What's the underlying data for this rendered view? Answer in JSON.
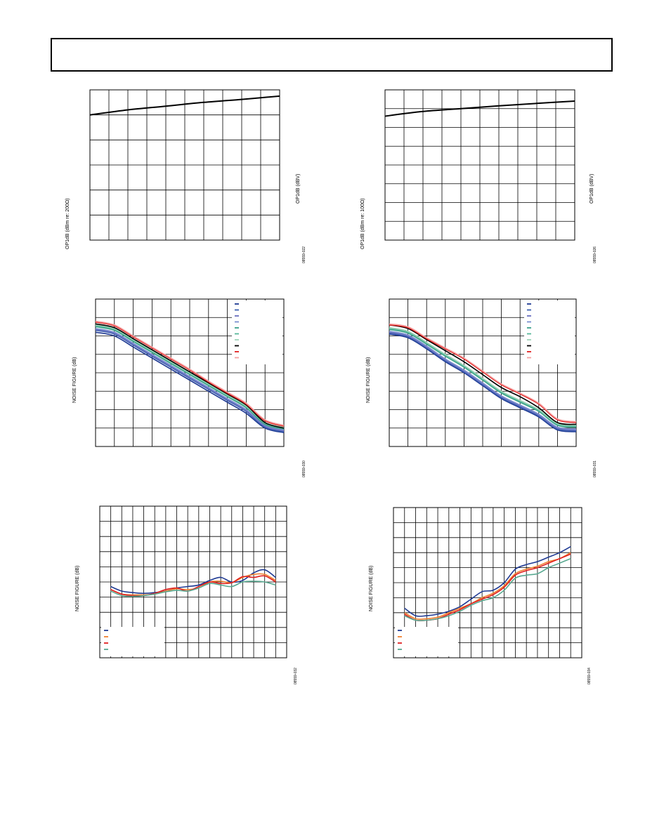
{
  "header": {
    "title": ""
  },
  "charts": [
    {
      "ylabel": "OP1dB (dBm re: 200Ω)",
      "ylabel_right": "OP1dB (dBV)",
      "figure_id": "08559-022"
    },
    {
      "ylabel": "OP1dB (dBm re: 100Ω)",
      "ylabel_right": "OP1dB (dBV)",
      "figure_id": "08559-026"
    },
    {
      "ylabel": "NOISE FIGURE (dB)",
      "figure_id": "08559-030"
    },
    {
      "ylabel": "NOISE FIGURE (dB)",
      "figure_id": "08559-031"
    },
    {
      "ylabel": "NOISE FIGURE (dB)",
      "figure_id": "08559-032"
    },
    {
      "ylabel": "NOISE FIGURE (dB)",
      "figure_id": "08559-034"
    }
  ],
  "chart_data": [
    {
      "type": "line",
      "grid": true,
      "grid_cols": 10,
      "grid_rows": 6,
      "xlim": [
        0,
        10
      ],
      "ylim": [
        0,
        6
      ],
      "series": [
        {
          "color": "#000000",
          "x": [
            0,
            2,
            4,
            6,
            8,
            10
          ],
          "y": [
            5.0,
            5.2,
            5.35,
            5.5,
            5.62,
            5.75
          ]
        }
      ]
    },
    {
      "type": "line",
      "grid": true,
      "grid_cols": 10,
      "grid_rows": 8,
      "xlim": [
        0,
        10
      ],
      "ylim": [
        0,
        8
      ],
      "series": [
        {
          "color": "#000000",
          "x": [
            0,
            2,
            4,
            6,
            8,
            10
          ],
          "y": [
            6.6,
            6.85,
            7.0,
            7.15,
            7.28,
            7.4
          ]
        }
      ]
    },
    {
      "type": "line",
      "grid": true,
      "grid_cols": 10,
      "grid_rows": 8,
      "xlim": [
        0,
        10
      ],
      "ylim": [
        0,
        8
      ],
      "legend": "top-right",
      "series": [
        {
          "color": "#1f3a93",
          "x": [
            0,
            1,
            2,
            3,
            4,
            5,
            6,
            7,
            8,
            9,
            10
          ],
          "y": [
            6.2,
            6.0,
            5.4,
            4.8,
            4.2,
            3.6,
            3.0,
            2.4,
            1.8,
            1.0,
            0.75
          ]
        },
        {
          "color": "#3b5fb0",
          "x": [
            0,
            1,
            2,
            3,
            4,
            5,
            6,
            7,
            8,
            9,
            10
          ],
          "y": [
            6.3,
            6.1,
            5.5,
            4.9,
            4.3,
            3.7,
            3.1,
            2.5,
            1.9,
            1.05,
            0.8
          ]
        },
        {
          "color": "#6a6fc0",
          "x": [
            0,
            1,
            2,
            3,
            4,
            5,
            6,
            7,
            8,
            9,
            10
          ],
          "y": [
            6.35,
            6.15,
            5.55,
            4.95,
            4.35,
            3.75,
            3.15,
            2.55,
            1.95,
            1.1,
            0.85
          ]
        },
        {
          "color": "#7a8fd0",
          "x": [
            0,
            1,
            2,
            3,
            4,
            5,
            6,
            7,
            8,
            9,
            10
          ],
          "y": [
            6.4,
            6.2,
            5.6,
            5.0,
            4.4,
            3.8,
            3.2,
            2.6,
            2.0,
            1.15,
            0.9
          ]
        },
        {
          "color": "#3aa08a",
          "x": [
            0,
            1,
            2,
            3,
            4,
            5,
            6,
            7,
            8,
            9,
            10
          ],
          "y": [
            6.5,
            6.3,
            5.7,
            5.1,
            4.5,
            3.9,
            3.3,
            2.7,
            2.1,
            1.2,
            0.95
          ]
        },
        {
          "color": "#58b89a",
          "x": [
            0,
            1,
            2,
            3,
            4,
            5,
            6,
            7,
            8,
            9,
            10
          ],
          "y": [
            6.55,
            6.35,
            5.75,
            5.15,
            4.55,
            3.95,
            3.35,
            2.75,
            2.15,
            1.25,
            1.0
          ]
        },
        {
          "color": "#9ed4b8",
          "x": [
            0,
            1,
            2,
            3,
            4,
            5,
            6,
            7,
            8,
            9,
            10
          ],
          "y": [
            6.6,
            6.4,
            5.8,
            5.2,
            4.6,
            4.0,
            3.4,
            2.8,
            2.2,
            1.3,
            1.05
          ]
        },
        {
          "color": "#000000",
          "x": [
            0,
            1,
            2,
            3,
            4,
            5,
            6,
            7,
            8,
            9,
            10
          ],
          "y": [
            6.65,
            6.45,
            5.85,
            5.25,
            4.65,
            4.05,
            3.45,
            2.85,
            2.25,
            1.3,
            1.0
          ]
        },
        {
          "color": "#e02020",
          "x": [
            0,
            1,
            2,
            3,
            4,
            5,
            6,
            7,
            8,
            9,
            10
          ],
          "y": [
            6.75,
            6.55,
            5.95,
            5.35,
            4.75,
            4.15,
            3.5,
            2.9,
            2.3,
            1.4,
            1.1
          ]
        },
        {
          "color": "#f4a0a0",
          "x": [
            0,
            1,
            2,
            3,
            4,
            5,
            6,
            7,
            8,
            9,
            10
          ],
          "y": [
            6.8,
            6.6,
            6.0,
            5.4,
            4.8,
            4.2,
            3.55,
            2.95,
            2.35,
            1.45,
            1.15
          ]
        }
      ]
    },
    {
      "type": "line",
      "grid": true,
      "grid_cols": 10,
      "grid_rows": 8,
      "xlim": [
        0,
        10
      ],
      "ylim": [
        0,
        8
      ],
      "legend": "top-right",
      "series": [
        {
          "color": "#1f3a93",
          "x": [
            0,
            1,
            2,
            3,
            4,
            5,
            6,
            7,
            8,
            9,
            10
          ],
          "y": [
            6.1,
            5.9,
            5.3,
            4.6,
            4.0,
            3.3,
            2.6,
            2.1,
            1.6,
            0.9,
            0.8
          ]
        },
        {
          "color": "#3b5fb0",
          "x": [
            0,
            1,
            2,
            3,
            4,
            5,
            6,
            7,
            8,
            9,
            10
          ],
          "y": [
            6.15,
            5.95,
            5.35,
            4.65,
            4.05,
            3.35,
            2.65,
            2.15,
            1.65,
            0.95,
            0.85
          ]
        },
        {
          "color": "#6a6fc0",
          "x": [
            0,
            1,
            2,
            3,
            4,
            5,
            6,
            7,
            8,
            9,
            10
          ],
          "y": [
            6.2,
            6.0,
            5.4,
            4.7,
            4.1,
            3.4,
            2.7,
            2.2,
            1.7,
            1.0,
            0.9
          ]
        },
        {
          "color": "#7a8fd0",
          "x": [
            0,
            1,
            2,
            3,
            4,
            5,
            6,
            7,
            8,
            9,
            10
          ],
          "y": [
            6.25,
            6.05,
            5.45,
            4.75,
            4.15,
            3.45,
            2.75,
            2.25,
            1.75,
            1.05,
            0.95
          ]
        },
        {
          "color": "#3aa08a",
          "x": [
            0,
            1,
            2,
            3,
            4,
            5,
            6,
            7,
            8,
            9,
            10
          ],
          "y": [
            6.35,
            6.15,
            5.55,
            4.9,
            4.3,
            3.6,
            2.9,
            2.4,
            1.9,
            1.15,
            1.05
          ]
        },
        {
          "color": "#58b89a",
          "x": [
            0,
            1,
            2,
            3,
            4,
            5,
            6,
            7,
            8,
            9,
            10
          ],
          "y": [
            6.4,
            6.2,
            5.6,
            4.95,
            4.35,
            3.65,
            2.95,
            2.45,
            1.95,
            1.2,
            1.1
          ]
        },
        {
          "color": "#9ed4b8",
          "x": [
            0,
            1,
            2,
            3,
            4,
            5,
            6,
            7,
            8,
            9,
            10
          ],
          "y": [
            6.45,
            6.25,
            5.65,
            5.0,
            4.4,
            3.7,
            3.0,
            2.5,
            2.0,
            1.25,
            1.15
          ]
        },
        {
          "color": "#000000",
          "x": [
            0,
            1,
            2,
            3,
            4,
            5,
            6,
            7,
            8,
            9,
            10
          ],
          "y": [
            6.6,
            6.4,
            5.8,
            5.2,
            4.6,
            3.9,
            3.2,
            2.7,
            2.1,
            1.3,
            1.2
          ]
        },
        {
          "color": "#e02020",
          "x": [
            0,
            1,
            2,
            3,
            4,
            5,
            6,
            7,
            8,
            9,
            10
          ],
          "y": [
            6.6,
            6.45,
            5.85,
            5.3,
            4.75,
            4.05,
            3.35,
            2.85,
            2.3,
            1.45,
            1.3
          ]
        },
        {
          "color": "#f4a0a0",
          "x": [
            0,
            1,
            2,
            3,
            4,
            5,
            6,
            7,
            8,
            9,
            10
          ],
          "y": [
            6.65,
            6.5,
            5.9,
            5.35,
            4.8,
            4.1,
            3.4,
            2.9,
            2.35,
            1.5,
            1.35
          ]
        }
      ]
    },
    {
      "type": "line",
      "grid": true,
      "grid_cols": 17,
      "grid_rows": 10,
      "xlim": [
        0,
        17
      ],
      "ylim": [
        0,
        10
      ],
      "legend": "bottom-left",
      "series": [
        {
          "color": "#1f3a93",
          "x": [
            1,
            2,
            3,
            4,
            5,
            6,
            7,
            8,
            9,
            10,
            11,
            12,
            13,
            14,
            15,
            16
          ],
          "y": [
            4.7,
            4.4,
            4.3,
            4.25,
            4.3,
            4.4,
            4.6,
            4.7,
            4.8,
            5.1,
            5.3,
            5.0,
            5.1,
            5.6,
            5.8,
            5.3
          ]
        },
        {
          "color": "#f08030",
          "x": [
            1,
            2,
            3,
            4,
            5,
            6,
            7,
            8,
            9,
            10,
            11,
            12,
            13,
            14,
            15,
            16
          ],
          "y": [
            4.5,
            4.2,
            4.15,
            4.15,
            4.2,
            4.4,
            4.55,
            4.5,
            4.6,
            5.0,
            5.05,
            4.95,
            5.3,
            5.5,
            5.5,
            5.1
          ]
        },
        {
          "color": "#e02020",
          "x": [
            1,
            2,
            3,
            4,
            5,
            6,
            7,
            8,
            9,
            10,
            11,
            12,
            13,
            14,
            15,
            16
          ],
          "y": [
            4.5,
            4.2,
            4.1,
            4.1,
            4.25,
            4.5,
            4.6,
            4.4,
            4.7,
            5.0,
            4.9,
            4.95,
            5.35,
            5.3,
            5.4,
            5.0
          ]
        },
        {
          "color": "#58a890",
          "x": [
            1,
            2,
            3,
            4,
            5,
            6,
            7,
            8,
            9,
            10,
            11,
            12,
            13,
            14,
            15,
            16
          ],
          "y": [
            4.4,
            4.1,
            4.05,
            4.1,
            4.2,
            4.35,
            4.45,
            4.4,
            4.6,
            4.9,
            4.8,
            4.7,
            5.0,
            5.05,
            5.0,
            4.8
          ]
        }
      ]
    },
    {
      "type": "line",
      "grid": true,
      "grid_cols": 17,
      "grid_rows": 10,
      "xlim": [
        0,
        17
      ],
      "ylim": [
        0,
        10
      ],
      "legend": "bottom-left",
      "series": [
        {
          "color": "#1f3a93",
          "x": [
            1,
            2,
            3,
            4,
            5,
            6,
            7,
            8,
            9,
            10,
            11,
            12,
            13,
            14,
            15,
            16
          ],
          "y": [
            3.3,
            2.8,
            2.8,
            2.9,
            3.1,
            3.4,
            3.9,
            4.4,
            4.5,
            5.0,
            5.9,
            6.2,
            6.4,
            6.7,
            7.0,
            7.4
          ]
        },
        {
          "color": "#f08030",
          "x": [
            1,
            2,
            3,
            4,
            5,
            6,
            7,
            8,
            9,
            10,
            11,
            12,
            13,
            14,
            15,
            16
          ],
          "y": [
            3.0,
            2.6,
            2.6,
            2.7,
            3.0,
            3.3,
            3.6,
            4.0,
            4.3,
            4.8,
            5.6,
            5.9,
            6.1,
            6.4,
            6.6,
            7.0
          ]
        },
        {
          "color": "#e02020",
          "x": [
            1,
            2,
            3,
            4,
            5,
            6,
            7,
            8,
            9,
            10,
            11,
            12,
            13,
            14,
            15,
            16
          ],
          "y": [
            2.9,
            2.5,
            2.5,
            2.6,
            2.9,
            3.2,
            3.6,
            3.9,
            4.2,
            4.7,
            5.5,
            5.8,
            6.0,
            6.3,
            6.6,
            6.9
          ]
        },
        {
          "color": "#58a890",
          "x": [
            1,
            2,
            3,
            4,
            5,
            6,
            7,
            8,
            9,
            10,
            11,
            12,
            13,
            14,
            15,
            16
          ],
          "y": [
            2.8,
            2.5,
            2.5,
            2.6,
            2.8,
            3.1,
            3.5,
            3.8,
            4.0,
            4.5,
            5.3,
            5.5,
            5.6,
            6.0,
            6.3,
            6.6
          ]
        }
      ]
    }
  ]
}
